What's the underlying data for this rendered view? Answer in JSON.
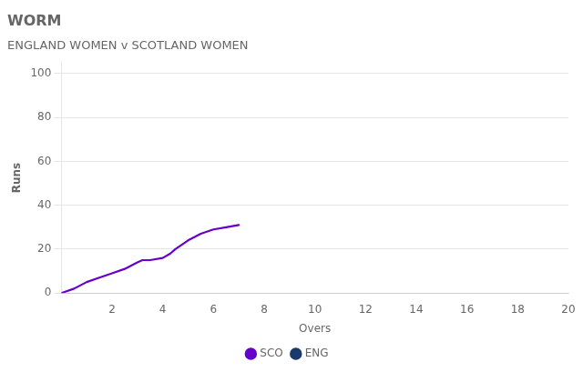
{
  "chart_data": {
    "type": "line",
    "title": "WORM",
    "subtitle": "ENGLAND WOMEN v SCOTLAND WOMEN",
    "xlabel": "Overs",
    "ylabel": "Runs",
    "x": [
      0,
      0.5,
      1.0,
      1.5,
      2.0,
      2.5,
      3.0,
      3.2,
      3.5,
      4.0,
      4.3,
      4.5,
      5.0,
      5.5,
      6.0,
      6.5,
      7.0
    ],
    "series": [
      {
        "name": "SCO",
        "color": "#6600cc",
        "values": [
          0,
          2,
          5,
          7,
          9,
          11,
          14,
          15,
          15,
          16,
          18,
          20,
          24,
          27,
          29,
          30,
          31
        ]
      },
      {
        "name": "ENG",
        "color": "#1a3a6b",
        "values": [
          null,
          null,
          null,
          null,
          null,
          null,
          null,
          null,
          null,
          null,
          null,
          null,
          null,
          null,
          null,
          null,
          null
        ]
      }
    ],
    "xlim": [
      0,
      20
    ],
    "xticks": [
      2,
      4,
      6,
      8,
      10,
      12,
      14,
      16,
      18,
      20
    ],
    "ylim": [
      0,
      105
    ],
    "yticks": [
      0,
      20,
      40,
      60,
      80,
      100
    ],
    "grid": "y",
    "legend": "bottom"
  }
}
